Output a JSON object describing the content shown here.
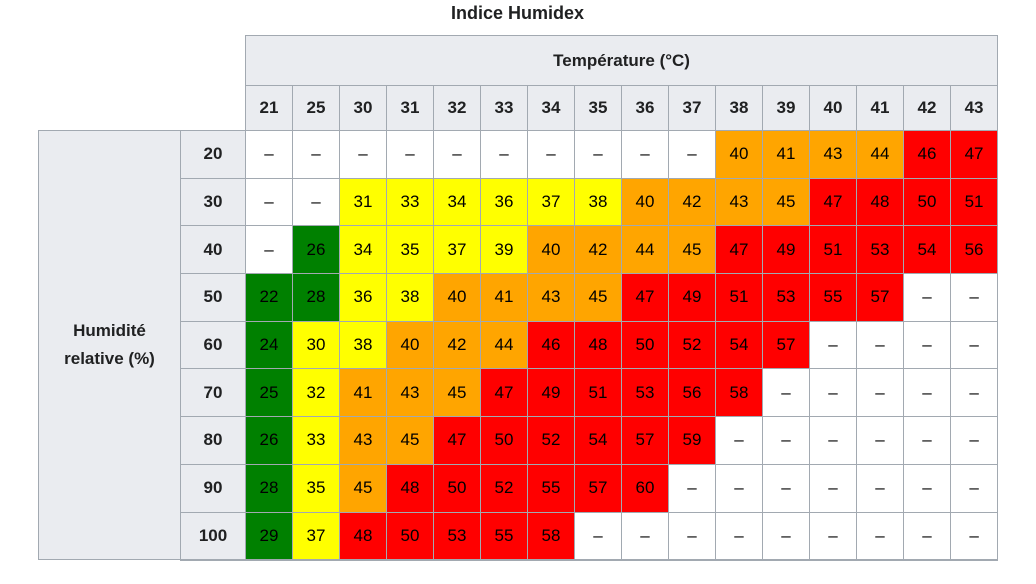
{
  "chart_data": {
    "type": "heatmap",
    "title": "Indice Humidex",
    "x_axis_label": "Température (°C)",
    "y_axis_label": "Humidité relative (%)",
    "x_categories": [
      21,
      25,
      30,
      31,
      32,
      33,
      34,
      35,
      36,
      37,
      38,
      39,
      40,
      41,
      42,
      43
    ],
    "y_categories": [
      20,
      30,
      40,
      50,
      60,
      70,
      80,
      90,
      100
    ],
    "empty_cell_symbol": "–",
    "values": [
      [
        null,
        null,
        null,
        null,
        null,
        null,
        null,
        null,
        null,
        null,
        40,
        41,
        43,
        44,
        46,
        47
      ],
      [
        null,
        null,
        31,
        33,
        34,
        36,
        37,
        38,
        40,
        42,
        43,
        45,
        47,
        48,
        50,
        51
      ],
      [
        null,
        26,
        34,
        35,
        37,
        39,
        40,
        42,
        44,
        45,
        47,
        49,
        51,
        53,
        54,
        56
      ],
      [
        22,
        28,
        36,
        38,
        40,
        41,
        43,
        45,
        47,
        49,
        51,
        53,
        55,
        57,
        null,
        null
      ],
      [
        24,
        30,
        38,
        40,
        42,
        44,
        46,
        48,
        50,
        52,
        54,
        57,
        null,
        null,
        null,
        null
      ],
      [
        25,
        32,
        41,
        43,
        45,
        47,
        49,
        51,
        53,
        56,
        58,
        null,
        null,
        null,
        null,
        null
      ],
      [
        26,
        33,
        43,
        45,
        47,
        50,
        52,
        54,
        57,
        59,
        null,
        null,
        null,
        null,
        null,
        null
      ],
      [
        28,
        35,
        45,
        48,
        50,
        52,
        55,
        57,
        60,
        null,
        null,
        null,
        null,
        null,
        null,
        null
      ],
      [
        29,
        37,
        48,
        50,
        53,
        55,
        58,
        null,
        null,
        null,
        null,
        null,
        null,
        null,
        null,
        null
      ]
    ],
    "cell_colors": [
      [
        "white",
        "white",
        "white",
        "white",
        "white",
        "white",
        "white",
        "white",
        "white",
        "white",
        "orange",
        "orange",
        "orange",
        "orange",
        "red",
        "red"
      ],
      [
        "white",
        "white",
        "yellow",
        "yellow",
        "yellow",
        "yellow",
        "yellow",
        "yellow",
        "orange",
        "orange",
        "orange",
        "orange",
        "red",
        "red",
        "red",
        "red"
      ],
      [
        "white",
        "green",
        "yellow",
        "yellow",
        "yellow",
        "yellow",
        "orange",
        "orange",
        "orange",
        "orange",
        "red",
        "red",
        "red",
        "red",
        "red",
        "red"
      ],
      [
        "green",
        "green",
        "yellow",
        "yellow",
        "orange",
        "orange",
        "orange",
        "orange",
        "red",
        "red",
        "red",
        "red",
        "red",
        "red",
        "white",
        "white"
      ],
      [
        "green",
        "yellow",
        "yellow",
        "orange",
        "orange",
        "orange",
        "red",
        "red",
        "red",
        "red",
        "red",
        "red",
        "white",
        "white",
        "white",
        "white"
      ],
      [
        "green",
        "yellow",
        "orange",
        "orange",
        "orange",
        "red",
        "red",
        "red",
        "red",
        "red",
        "red",
        "white",
        "white",
        "white",
        "white",
        "white"
      ],
      [
        "green",
        "yellow",
        "orange",
        "orange",
        "red",
        "red",
        "red",
        "red",
        "red",
        "red",
        "white",
        "white",
        "white",
        "white",
        "white",
        "white"
      ],
      [
        "green",
        "yellow",
        "orange",
        "red",
        "red",
        "red",
        "red",
        "red",
        "red",
        "white",
        "white",
        "white",
        "white",
        "white",
        "white",
        "white"
      ],
      [
        "green",
        "yellow",
        "red",
        "red",
        "red",
        "red",
        "red",
        "white",
        "white",
        "white",
        "white",
        "white",
        "white",
        "white",
        "white",
        "white"
      ]
    ],
    "palette": {
      "green": "#008000",
      "yellow": "#ffff00",
      "orange": "#ffa500",
      "red": "#ff0000",
      "white": "#ffffff"
    },
    "layout": {
      "header_bg": "#eaecf0",
      "border_color": "#a2a9b1",
      "legend": "none",
      "grid": "table-borders"
    }
  }
}
